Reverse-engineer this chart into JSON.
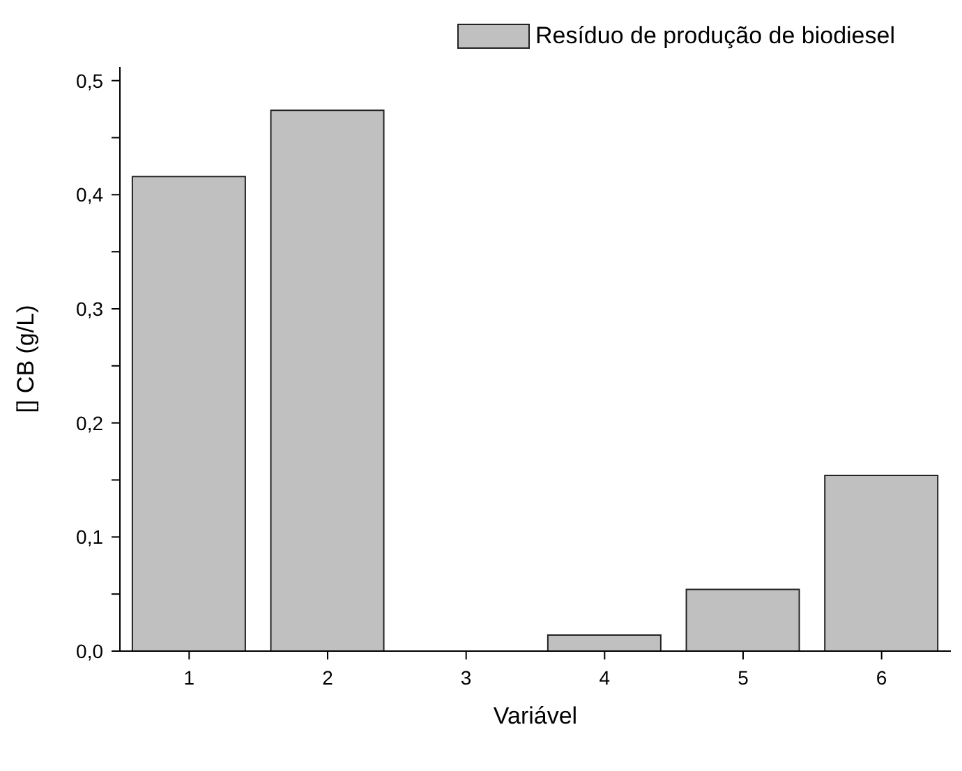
{
  "chart_data": {
    "type": "bar",
    "xlabel": "Variável",
    "ylabel": "[] CB (g/L)",
    "categories": [
      "1",
      "2",
      "3",
      "4",
      "5",
      "6"
    ],
    "series": [
      {
        "name": "Resíduo de produção de biodiesel",
        "color": "#c0c0c0",
        "values": [
          0.416,
          0.474,
          0,
          0.014,
          0.054,
          0.154
        ]
      }
    ],
    "ylim": [
      0,
      0.512
    ],
    "yticks": [
      {
        "value": 0,
        "label": "0,0"
      },
      {
        "value": 0.05,
        "label": null
      },
      {
        "value": 0.1,
        "label": "0,1"
      },
      {
        "value": 0.15,
        "label": null
      },
      {
        "value": 0.2,
        "label": "0,2"
      },
      {
        "value": 0.25,
        "label": null
      },
      {
        "value": 0.3,
        "label": "0,3"
      },
      {
        "value": 0.35,
        "label": null
      },
      {
        "value": 0.4,
        "label": "0,4"
      },
      {
        "value": 0.45,
        "label": null
      },
      {
        "value": 0.5,
        "label": "0,5"
      }
    ],
    "grid": false,
    "legend": "top right"
  }
}
